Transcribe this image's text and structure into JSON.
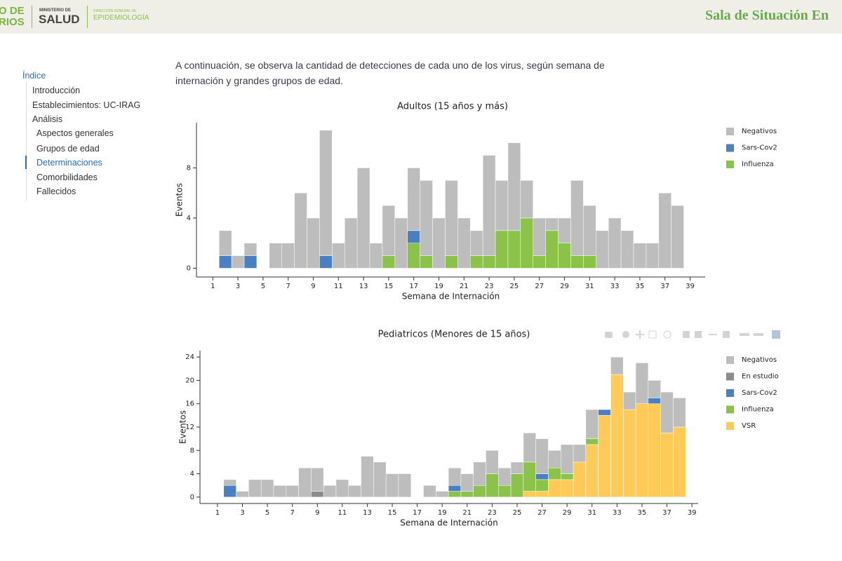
{
  "header": {
    "logo_top": "O DE",
    "logo_bottom": "RIOS",
    "ministry_small": "MINISTERIO DE",
    "ministry": "SALUD",
    "direction_small": "DIRECCIÓN GENERAL DE",
    "direction": "EPIDEMIOLOGÍA",
    "title": "Sala de Situación En"
  },
  "nav": {
    "title": "Índice",
    "items": [
      "Introducción",
      "Establecimientos: UC-IRAG",
      "Análisis",
      "Aspectos generales",
      "Grupos de edad",
      "Determinaciones",
      "Comorbilidades",
      "Fallecidos"
    ]
  },
  "intro": "A continuación, se observa la cantidad de detecciones de cada uno de los virus, según semana de internación y grandes grupos de edad.",
  "chart_data": [
    {
      "type": "bar",
      "stacked": true,
      "title": "Adultos (15 años y más)",
      "xlabel": "Semana de Internación",
      "ylabel": "Eventos",
      "x": [
        2,
        3,
        4,
        5,
        6,
        7,
        8,
        9,
        10,
        11,
        12,
        13,
        14,
        15,
        16,
        17,
        18,
        19,
        20,
        21,
        22,
        23,
        24,
        25,
        26,
        27,
        28,
        29,
        30,
        31,
        32,
        33,
        34,
        35,
        36,
        37,
        38
      ],
      "xlim": [
        -0.3,
        40.2
      ],
      "xticks": [
        1,
        3,
        5,
        7,
        9,
        11,
        13,
        15,
        17,
        19,
        21,
        23,
        25,
        27,
        29,
        31,
        33,
        35,
        37,
        39
      ],
      "ylim": [
        -0.7,
        11.6
      ],
      "yticks": [
        0,
        4,
        8
      ],
      "series": [
        {
          "name": "Negativos",
          "color": "#bdbdbd",
          "values": [
            2,
            1,
            1,
            0,
            2,
            2,
            6,
            4,
            10,
            2,
            4,
            8,
            2,
            4,
            4,
            5,
            6,
            4,
            6,
            4,
            2,
            8,
            4,
            7,
            3,
            3,
            1,
            2,
            6,
            4,
            3,
            4,
            3,
            2,
            2,
            6,
            5
          ]
        },
        {
          "name": "Sars-Cov2",
          "color": "#4a80c2",
          "values": [
            1,
            0,
            1,
            0,
            0,
            0,
            0,
            0,
            1,
            0,
            0,
            0,
            0,
            0,
            0,
            1,
            0,
            0,
            0,
            0,
            0,
            0,
            0,
            0,
            0,
            0,
            0,
            0,
            0,
            0,
            0,
            0,
            0,
            0,
            0,
            0,
            0
          ]
        },
        {
          "name": "Influenza",
          "color": "#8bc34a",
          "values": [
            0,
            0,
            0,
            0,
            0,
            0,
            0,
            0,
            0,
            0,
            0,
            0,
            0,
            1,
            0,
            2,
            1,
            0,
            1,
            0,
            1,
            1,
            3,
            3,
            4,
            1,
            3,
            2,
            1,
            1,
            0,
            0,
            0,
            0,
            0,
            0,
            0
          ]
        }
      ]
    },
    {
      "type": "bar",
      "stacked": true,
      "title": "Pediatricos (Menores de 15 años)",
      "xlabel": "Semana de Internación",
      "ylabel": "Eventos",
      "x": [
        2,
        3,
        4,
        5,
        6,
        7,
        8,
        9,
        10,
        11,
        12,
        13,
        14,
        15,
        16,
        17,
        18,
        19,
        20,
        21,
        22,
        23,
        24,
        25,
        26,
        27,
        28,
        29,
        30,
        31,
        32,
        33,
        34,
        35,
        36,
        37,
        38
      ],
      "xlim": [
        -0.4,
        39.5
      ],
      "xticks": [
        1,
        3,
        5,
        7,
        9,
        11,
        13,
        15,
        17,
        19,
        21,
        23,
        25,
        27,
        29,
        31,
        33,
        35,
        37,
        39
      ],
      "ylim": [
        -1.1,
        25.1
      ],
      "yticks": [
        0,
        4,
        8,
        12,
        16,
        20,
        24
      ],
      "series": [
        {
          "name": "Negativos",
          "color": "#bdbdbd",
          "values": [
            1,
            1,
            3,
            3,
            2,
            2,
            5,
            4,
            2,
            3,
            2,
            7,
            6,
            4,
            4,
            0,
            2,
            1,
            3,
            3,
            4,
            4,
            3,
            2,
            5,
            6,
            3,
            5,
            3,
            5,
            0,
            3,
            3,
            7,
            3,
            7,
            5
          ]
        },
        {
          "name": "En estudio",
          "color": "#8c8c8c",
          "values": [
            0,
            0,
            0,
            0,
            0,
            0,
            0,
            1,
            0,
            0,
            0,
            0,
            0,
            0,
            0,
            0,
            0,
            0,
            0,
            0,
            0,
            0,
            0,
            0,
            0,
            0,
            0,
            0,
            0,
            0,
            0,
            0,
            0,
            0,
            0,
            0,
            0
          ]
        },
        {
          "name": "Sars-Cov2",
          "color": "#4a80c2",
          "values": [
            2,
            0,
            0,
            0,
            0,
            0,
            0,
            0,
            0,
            0,
            0,
            0,
            0,
            0,
            0,
            0,
            0,
            0,
            1,
            0,
            0,
            0,
            0,
            0,
            0,
            1,
            0,
            0,
            0,
            0,
            1,
            0,
            0,
            0,
            1,
            0,
            0
          ]
        },
        {
          "name": "Influenza",
          "color": "#8bc34a",
          "values": [
            0,
            0,
            0,
            0,
            0,
            0,
            0,
            0,
            0,
            0,
            0,
            0,
            0,
            0,
            0,
            0,
            0,
            0,
            1,
            1,
            2,
            4,
            2,
            4,
            5,
            2,
            2,
            1,
            0,
            1,
            0,
            0,
            0,
            0,
            0,
            0,
            0
          ]
        },
        {
          "name": "VSR",
          "color": "#ffca57",
          "values": [
            0,
            0,
            0,
            0,
            0,
            0,
            0,
            0,
            0,
            0,
            0,
            0,
            0,
            0,
            0,
            0,
            0,
            0,
            0,
            0,
            0,
            0,
            0,
            0,
            1,
            1,
            3,
            3,
            6,
            9,
            14,
            21,
            15,
            16,
            16,
            11,
            12
          ]
        }
      ]
    }
  ]
}
